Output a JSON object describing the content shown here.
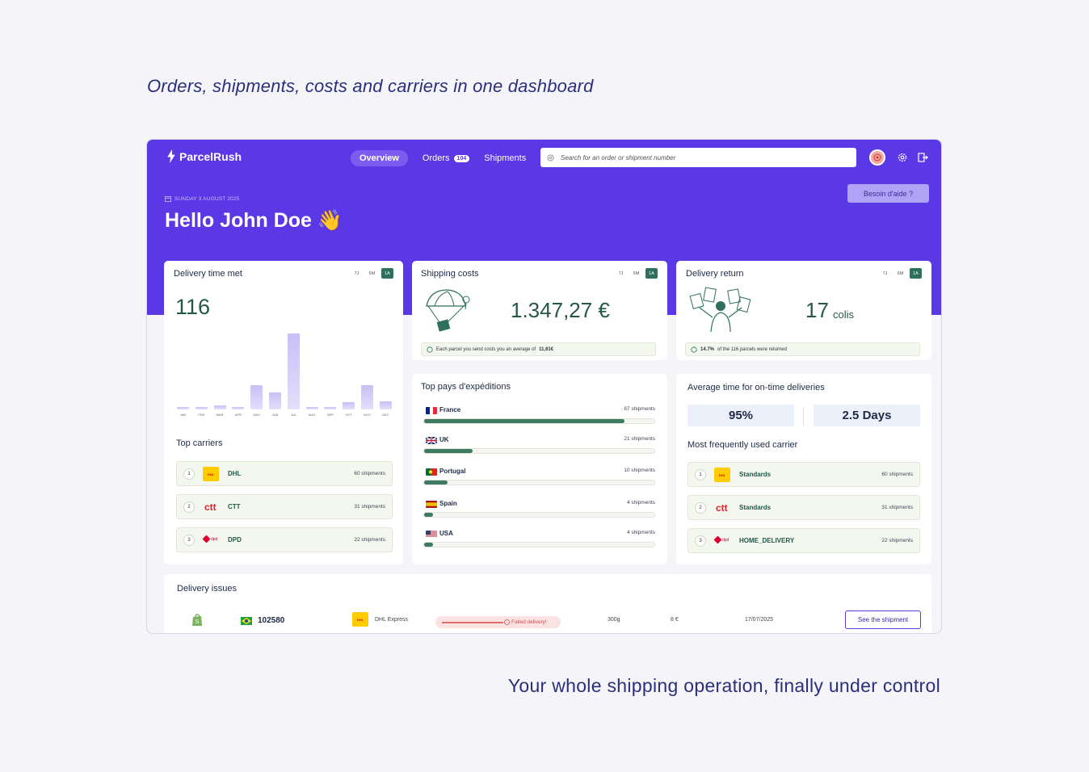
{
  "headline_top": "Orders, shipments, costs and carriers in one dashboard",
  "headline_bottom": "Your whole shipping operation, finally under control",
  "app": {
    "logo": "ParcelRush",
    "nav": [
      {
        "label": "Overview"
      },
      {
        "label": "Orders",
        "badge": "104"
      },
      {
        "label": "Shipments"
      }
    ],
    "search_placeholder": "Search for an order or shipment number",
    "date": "SUNDAY 3 AUGUST 2025",
    "greeting": "Hello John Doe 👋",
    "help_button": "Besoin d'aide ?",
    "accent_color": "#5a38e6",
    "green_color": "#2e6f5e"
  },
  "periods": [
    "7J",
    "6M",
    "1A"
  ],
  "delivery_time": {
    "title": "Delivery time met",
    "value": "116",
    "top_carriers_title": "Top carriers",
    "carriers": [
      {
        "rank": "1",
        "logo": "DHL",
        "name": "DHL",
        "count": "60 shipments"
      },
      {
        "rank": "2",
        "logo": "ctt",
        "name": "CTT",
        "count": "31 shipments"
      },
      {
        "rank": "3",
        "logo": "dpd",
        "name": "DPD",
        "count": "22 shipments"
      }
    ]
  },
  "chart_data": {
    "type": "bar",
    "categories": [
      "JAN",
      "FEB",
      "MAR",
      "APR",
      "MAY",
      "JUN",
      "JUL",
      "AUG",
      "SEP",
      "OCT",
      "NOV",
      "DEC"
    ],
    "values": [
      3,
      3,
      6,
      3,
      35,
      25,
      110,
      3,
      3,
      10,
      35,
      12
    ]
  },
  "shipping_costs": {
    "title": "Shipping costs",
    "value": "1.347,27 €",
    "note_prefix": "Each parcel you send costs you an average of",
    "note_value": "11,61€",
    "countries_title": "Top pays d'expéditions",
    "countries": [
      {
        "name": "France",
        "count": "87 shipments",
        "value": 87,
        "flag": "fr"
      },
      {
        "name": "UK",
        "count": "21 shipments",
        "value": 21,
        "flag": "uk"
      },
      {
        "name": "Portugal",
        "count": "10 shipments",
        "value": 10,
        "flag": "pt"
      },
      {
        "name": "Spain",
        "count": "4 shipments",
        "value": 4,
        "flag": "es"
      },
      {
        "name": "USA",
        "count": "4 shipments",
        "value": 4,
        "flag": "us"
      }
    ]
  },
  "delivery_return": {
    "title": "Delivery return",
    "value": "17",
    "unit": "colis",
    "note_bold": "14.7%",
    "note_rest": "of the 116 parcels were returned",
    "avg_title": "Average time for on-time deliveries",
    "percent": "95%",
    "days": "2.5 Days",
    "frequent_title": "Most frequently used carrier",
    "carriers": [
      {
        "rank": "1",
        "logo": "DHL",
        "name": "Standards",
        "count": "60 shipments"
      },
      {
        "rank": "2",
        "logo": "ctt",
        "name": "Standards",
        "count": "31 shipments"
      },
      {
        "rank": "3",
        "logo": "dpd",
        "name": "HOME_DELIVERY",
        "count": "22 shipments"
      }
    ]
  },
  "issues": {
    "title": "Delivery issues",
    "row": {
      "order": "102580",
      "carrier": "DHL Express",
      "status": "Failed delivery!",
      "weight": "300g",
      "price": "8 €",
      "date": "17/07/2025",
      "action": "See the shipment"
    }
  },
  "logo_text": {
    "dhl": "DHL",
    "ctt": "ctt",
    "dpd": "dpd"
  }
}
